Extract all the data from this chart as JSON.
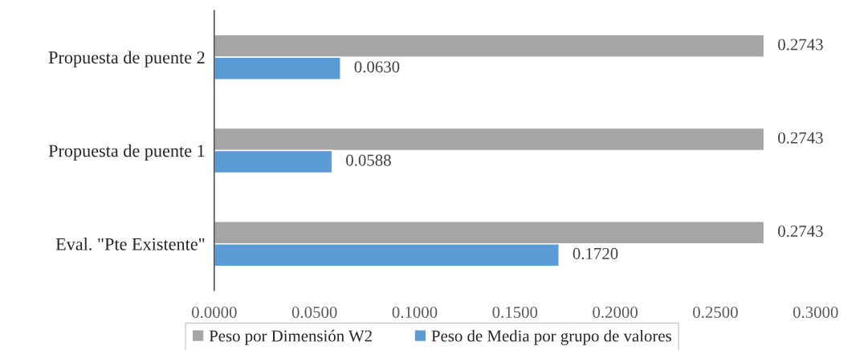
{
  "chart_data": {
    "type": "bar",
    "orientation": "horizontal",
    "categories": [
      "Propuesta de puente 2",
      "Propuesta de puente 1",
      "Eval. \"Pte Existente\""
    ],
    "series": [
      {
        "name": "Peso por Dimensión W2",
        "color": "#a5a5a5",
        "values": [
          0.2743,
          0.2743,
          0.2743
        ],
        "value_labels": [
          "0.2743",
          "0.2743",
          "0.2743"
        ]
      },
      {
        "name": "Peso de Media por grupo de valores",
        "color": "#5b9bd5",
        "values": [
          0.063,
          0.0588,
          0.172
        ],
        "value_labels": [
          "0.0630",
          "0.0588",
          "0.1720"
        ]
      }
    ],
    "xlim": [
      0,
      0.3
    ],
    "xticks": [
      {
        "value": 0,
        "label": "0.0000"
      },
      {
        "value": 0.05,
        "label": "0.0500"
      },
      {
        "value": 0.1,
        "label": "0.1000"
      },
      {
        "value": 0.15,
        "label": "0.1500"
      },
      {
        "value": 0.2,
        "label": "0.2000"
      },
      {
        "value": 0.25,
        "label": "0.2500"
      },
      {
        "value": 0.3,
        "label": "0.3000"
      }
    ],
    "grid": false,
    "legend": "bottom"
  }
}
